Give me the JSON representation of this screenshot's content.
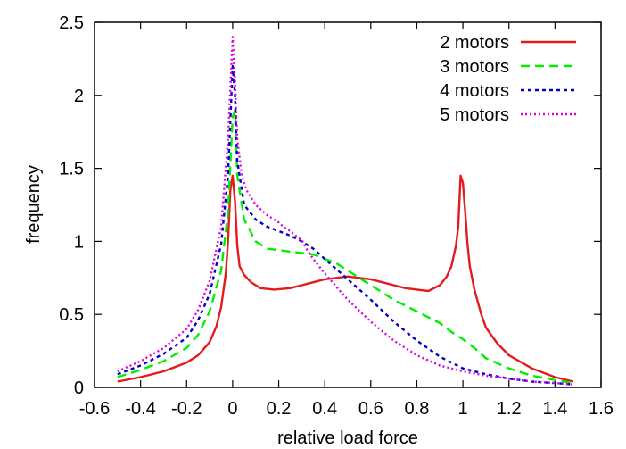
{
  "chart_data": {
    "type": "line",
    "title": "",
    "xlabel": "relative load force",
    "ylabel": "frequency",
    "xlim": [
      -0.6,
      1.6
    ],
    "ylim": [
      0,
      2.5
    ],
    "xticks": [
      "-0.6",
      "-0.4",
      "-0.2",
      "0",
      "0.2",
      "0.4",
      "0.6",
      "0.8",
      "1",
      "1.2",
      "1.4",
      "1.6"
    ],
    "yticks": [
      "0",
      "0.5",
      "1",
      "1.5",
      "2",
      "2.5"
    ],
    "grid": false,
    "legend_position": "top-right",
    "series": [
      {
        "name": "2 motors",
        "color": "#e41a1c",
        "dash": "solid",
        "x": [
          -0.5,
          -0.4,
          -0.3,
          -0.2,
          -0.15,
          -0.1,
          -0.07,
          -0.05,
          -0.03,
          -0.02,
          -0.01,
          0.0,
          0.01,
          0.02,
          0.03,
          0.05,
          0.08,
          0.12,
          0.18,
          0.25,
          0.3,
          0.35,
          0.4,
          0.45,
          0.5,
          0.55,
          0.6,
          0.65,
          0.7,
          0.75,
          0.8,
          0.85,
          0.9,
          0.93,
          0.95,
          0.97,
          0.98,
          0.99,
          1.0,
          1.01,
          1.02,
          1.03,
          1.05,
          1.08,
          1.1,
          1.15,
          1.2,
          1.3,
          1.4,
          1.48
        ],
        "y": [
          0.04,
          0.07,
          0.11,
          0.17,
          0.22,
          0.31,
          0.42,
          0.55,
          0.78,
          1.0,
          1.35,
          1.45,
          1.28,
          0.97,
          0.83,
          0.77,
          0.72,
          0.68,
          0.67,
          0.68,
          0.7,
          0.72,
          0.74,
          0.75,
          0.76,
          0.75,
          0.74,
          0.72,
          0.7,
          0.68,
          0.67,
          0.66,
          0.7,
          0.76,
          0.83,
          0.97,
          1.1,
          1.45,
          1.4,
          1.2,
          0.98,
          0.83,
          0.67,
          0.5,
          0.41,
          0.3,
          0.22,
          0.13,
          0.07,
          0.04
        ]
      },
      {
        "name": "3 motors",
        "color": "#00ee00",
        "dash": "10,6",
        "x": [
          -0.5,
          -0.4,
          -0.3,
          -0.2,
          -0.15,
          -0.1,
          -0.05,
          -0.02,
          0.0,
          0.01,
          0.02,
          0.05,
          0.1,
          0.15,
          0.2,
          0.25,
          0.3,
          0.35,
          0.4,
          0.45,
          0.5,
          0.6,
          0.7,
          0.8,
          0.9,
          0.95,
          1.0,
          1.05,
          1.1,
          1.2,
          1.3,
          1.4,
          1.48
        ],
        "y": [
          0.07,
          0.12,
          0.18,
          0.27,
          0.36,
          0.52,
          0.8,
          1.2,
          1.85,
          1.9,
          1.45,
          1.15,
          1.0,
          0.95,
          0.94,
          0.93,
          0.92,
          0.91,
          0.88,
          0.85,
          0.8,
          0.7,
          0.6,
          0.52,
          0.44,
          0.38,
          0.33,
          0.27,
          0.2,
          0.13,
          0.08,
          0.05,
          0.03
        ]
      },
      {
        "name": "4 motors",
        "color": "#0000cc",
        "dash": "4,4",
        "x": [
          -0.5,
          -0.4,
          -0.3,
          -0.2,
          -0.15,
          -0.1,
          -0.05,
          -0.02,
          0.0,
          0.01,
          0.02,
          0.05,
          0.1,
          0.15,
          0.2,
          0.25,
          0.3,
          0.35,
          0.4,
          0.5,
          0.6,
          0.7,
          0.8,
          0.9,
          1.0,
          1.1,
          1.2,
          1.3,
          1.4,
          1.48
        ],
        "y": [
          0.09,
          0.15,
          0.23,
          0.34,
          0.46,
          0.64,
          0.98,
          1.45,
          2.2,
          2.0,
          1.55,
          1.25,
          1.15,
          1.1,
          1.07,
          1.04,
          1.0,
          0.95,
          0.88,
          0.74,
          0.6,
          0.45,
          0.32,
          0.21,
          0.13,
          0.09,
          0.06,
          0.04,
          0.03,
          0.02
        ]
      },
      {
        "name": "5 motors",
        "color": "#dd00dd",
        "dash": "2,3",
        "x": [
          -0.5,
          -0.4,
          -0.3,
          -0.2,
          -0.15,
          -0.1,
          -0.05,
          -0.02,
          0.0,
          0.01,
          0.02,
          0.04,
          0.06,
          0.1,
          0.15,
          0.2,
          0.22,
          0.25,
          0.28,
          0.3,
          0.32,
          0.35,
          0.4,
          0.5,
          0.6,
          0.7,
          0.8,
          0.9,
          1.0,
          1.1,
          1.2,
          1.3,
          1.4,
          1.48
        ],
        "y": [
          0.11,
          0.18,
          0.27,
          0.4,
          0.53,
          0.73,
          1.1,
          1.7,
          2.4,
          2.1,
          1.7,
          1.45,
          1.35,
          1.25,
          1.18,
          1.13,
          1.1,
          1.07,
          1.03,
          1.01,
          0.95,
          0.88,
          0.78,
          0.6,
          0.45,
          0.32,
          0.22,
          0.15,
          0.11,
          0.08,
          0.06,
          0.04,
          0.03,
          0.02
        ]
      }
    ]
  }
}
